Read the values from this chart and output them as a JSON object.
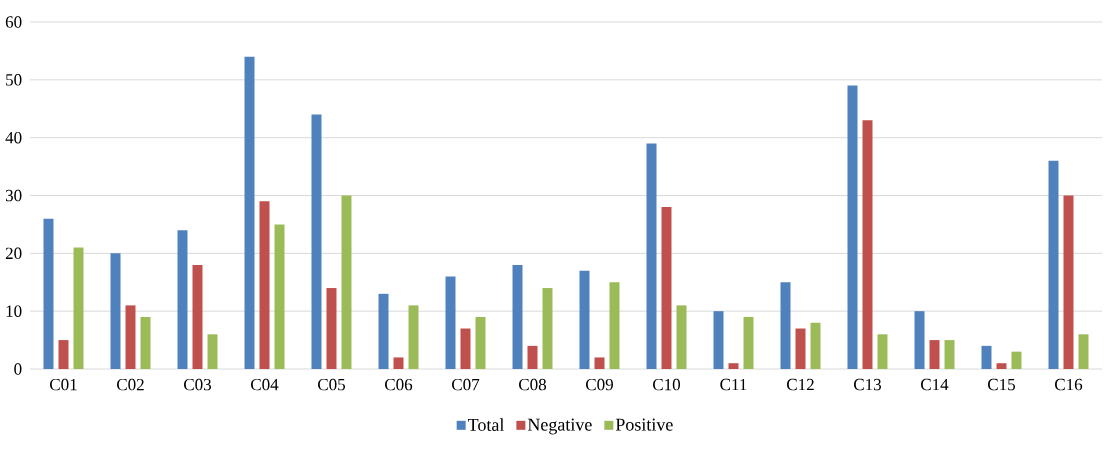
{
  "chart_data": {
    "type": "bar",
    "categories": [
      "C01",
      "C02",
      "C03",
      "C04",
      "C05",
      "C06",
      "C07",
      "C08",
      "C09",
      "C10",
      "C11",
      "C12",
      "C13",
      "C14",
      "C15",
      "C16"
    ],
    "series": [
      {
        "name": "Total",
        "color": "#4f81bd",
        "values": [
          26,
          20,
          24,
          54,
          44,
          13,
          16,
          18,
          17,
          39,
          10,
          15,
          49,
          10,
          4,
          36
        ]
      },
      {
        "name": "Negative",
        "color": "#c0504d",
        "values": [
          5,
          11,
          18,
          29,
          14,
          2,
          7,
          4,
          2,
          28,
          1,
          7,
          43,
          5,
          1,
          30
        ]
      },
      {
        "name": "Positive",
        "color": "#9bbb59",
        "values": [
          21,
          9,
          6,
          25,
          30,
          11,
          9,
          14,
          15,
          11,
          9,
          8,
          6,
          5,
          3,
          6
        ]
      }
    ],
    "ylim": [
      0,
      60
    ],
    "yticks": [
      0,
      10,
      20,
      30,
      40,
      50,
      60
    ],
    "grid": "y",
    "legend": "bottom"
  }
}
